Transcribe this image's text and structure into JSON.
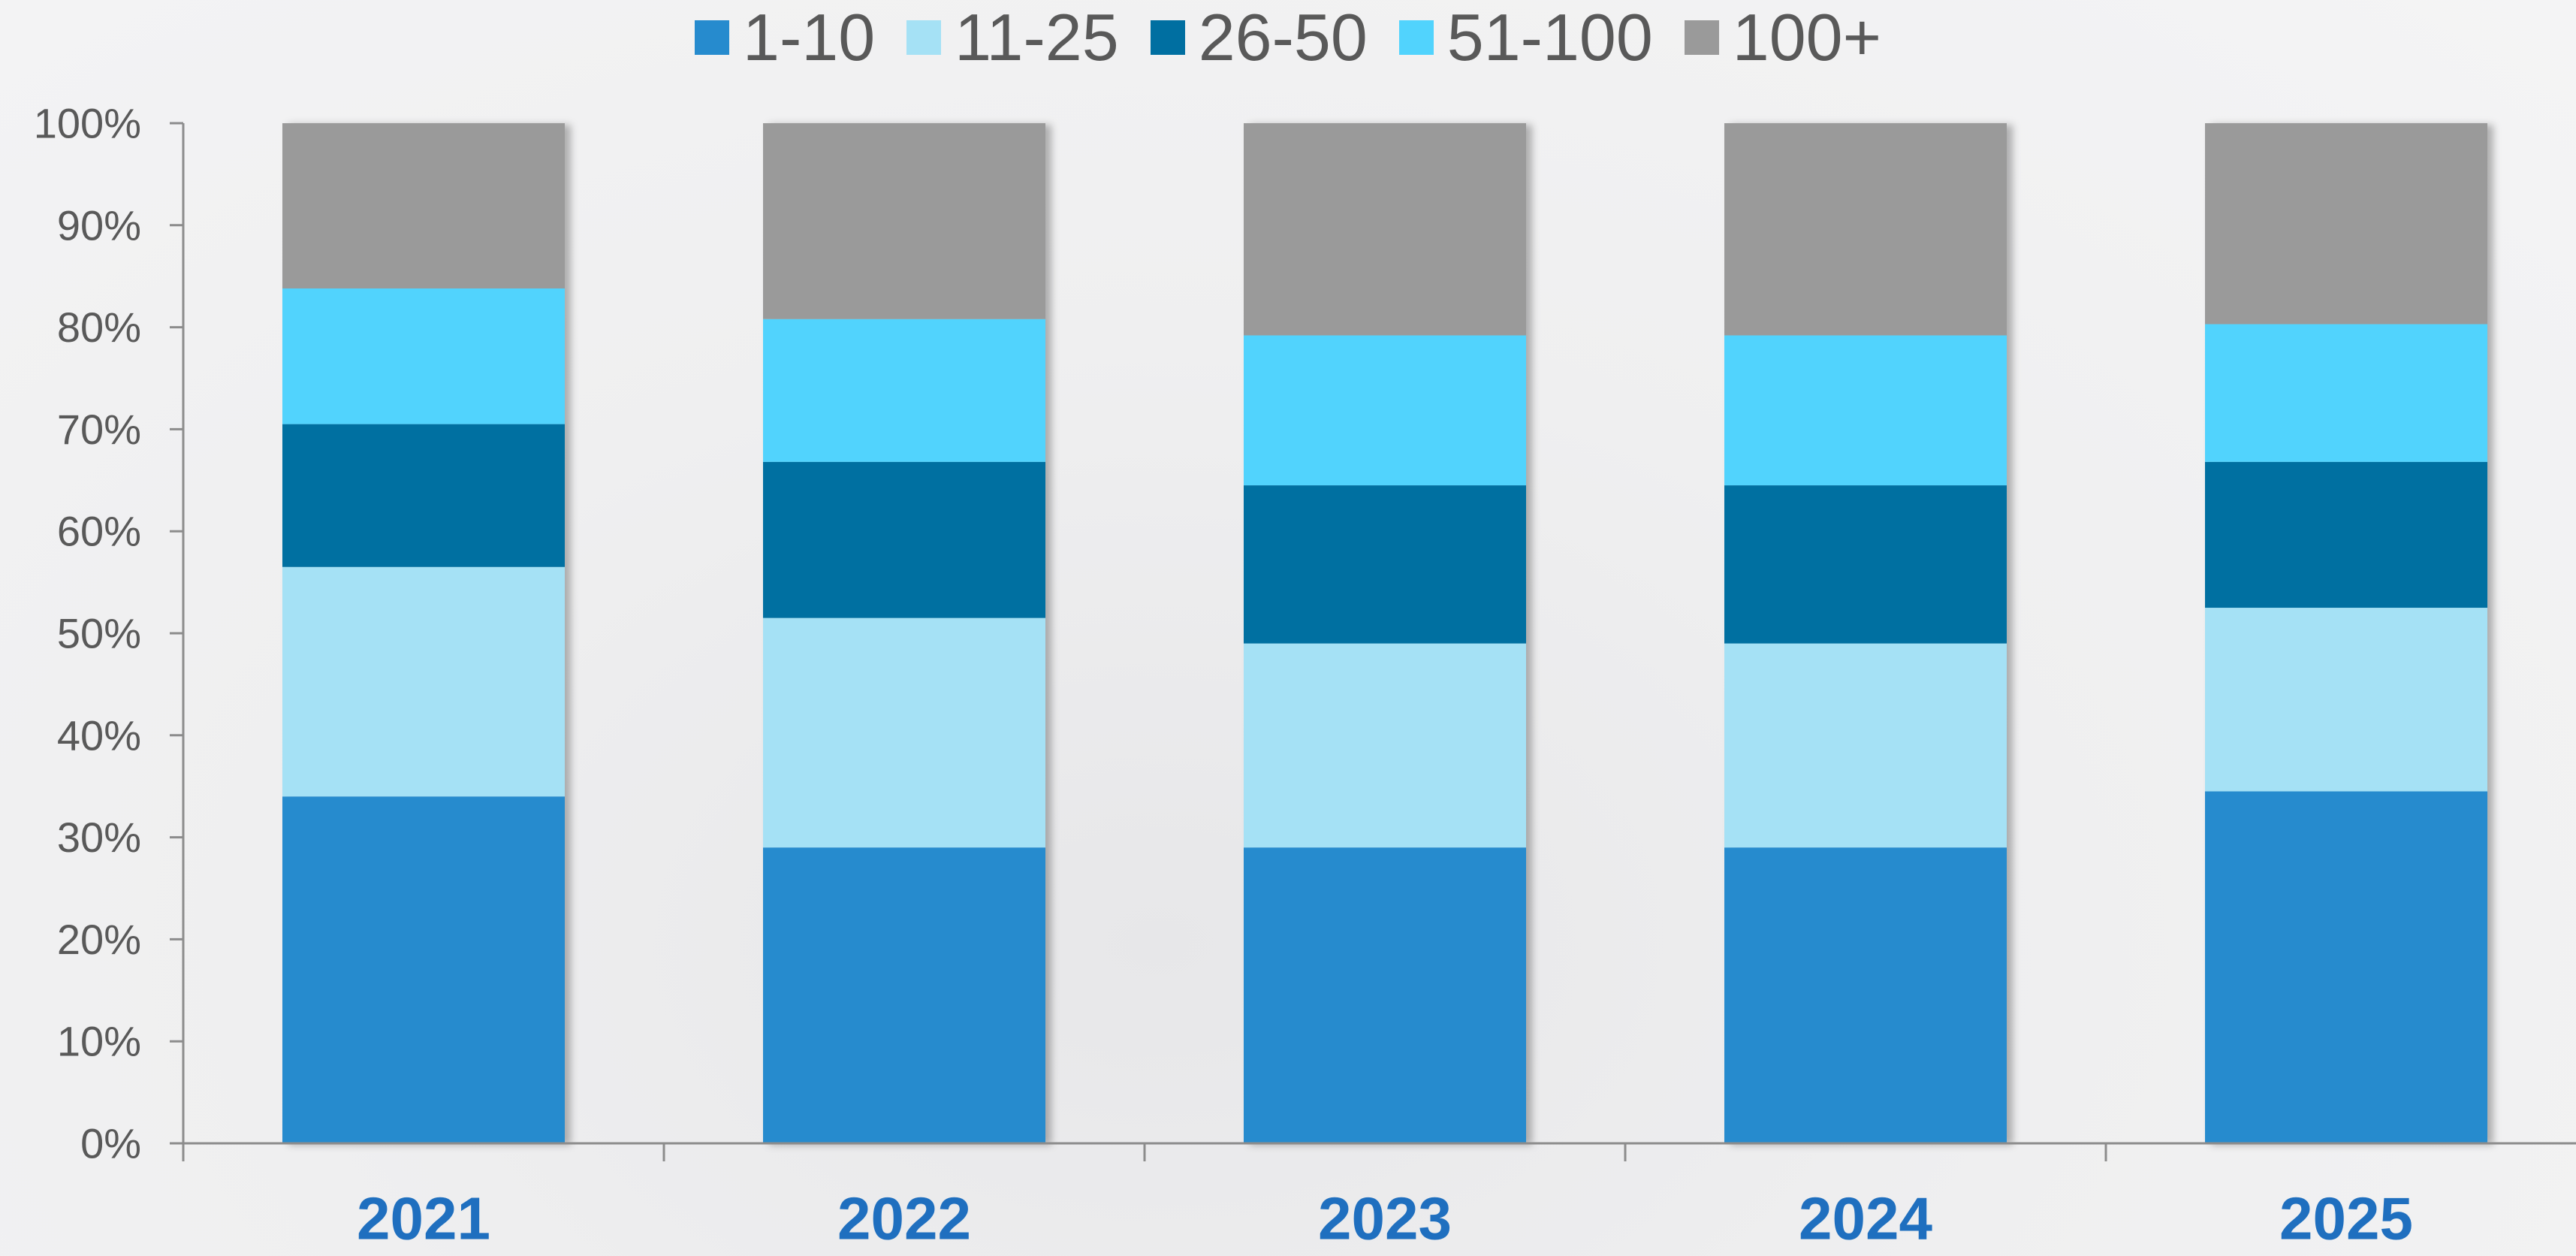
{
  "chart_data": {
    "type": "bar",
    "stacked": true,
    "percent": true,
    "categories": [
      "2021",
      "2022",
      "2023",
      "2024",
      "2025"
    ],
    "series": [
      {
        "name": "1-10",
        "color": "#268bce",
        "values": [
          34,
          29,
          29,
          29,
          34.5
        ]
      },
      {
        "name": "11-25",
        "color": "#a5e1f5",
        "values": [
          22.5,
          22.5,
          20,
          20,
          18
        ]
      },
      {
        "name": "26-50",
        "color": "#006fa1",
        "values": [
          14,
          15.3,
          15.5,
          15.5,
          14.3
        ]
      },
      {
        "name": "51-100",
        "color": "#51d3fd",
        "values": [
          13.3,
          14,
          14.7,
          14.7,
          13.5
        ]
      },
      {
        "name": "100+",
        "color": "#9a9a9a",
        "values": [
          16.2,
          19.2,
          20.8,
          20.8,
          19.7
        ]
      }
    ],
    "y_ticks": [
      "0%",
      "10%",
      "20%",
      "30%",
      "40%",
      "50%",
      "60%",
      "70%",
      "80%",
      "90%",
      "100%"
    ],
    "ylim": [
      0,
      100
    ],
    "title": "",
    "xlabel": "",
    "ylabel": "",
    "legend_position": "top",
    "grid": false
  }
}
